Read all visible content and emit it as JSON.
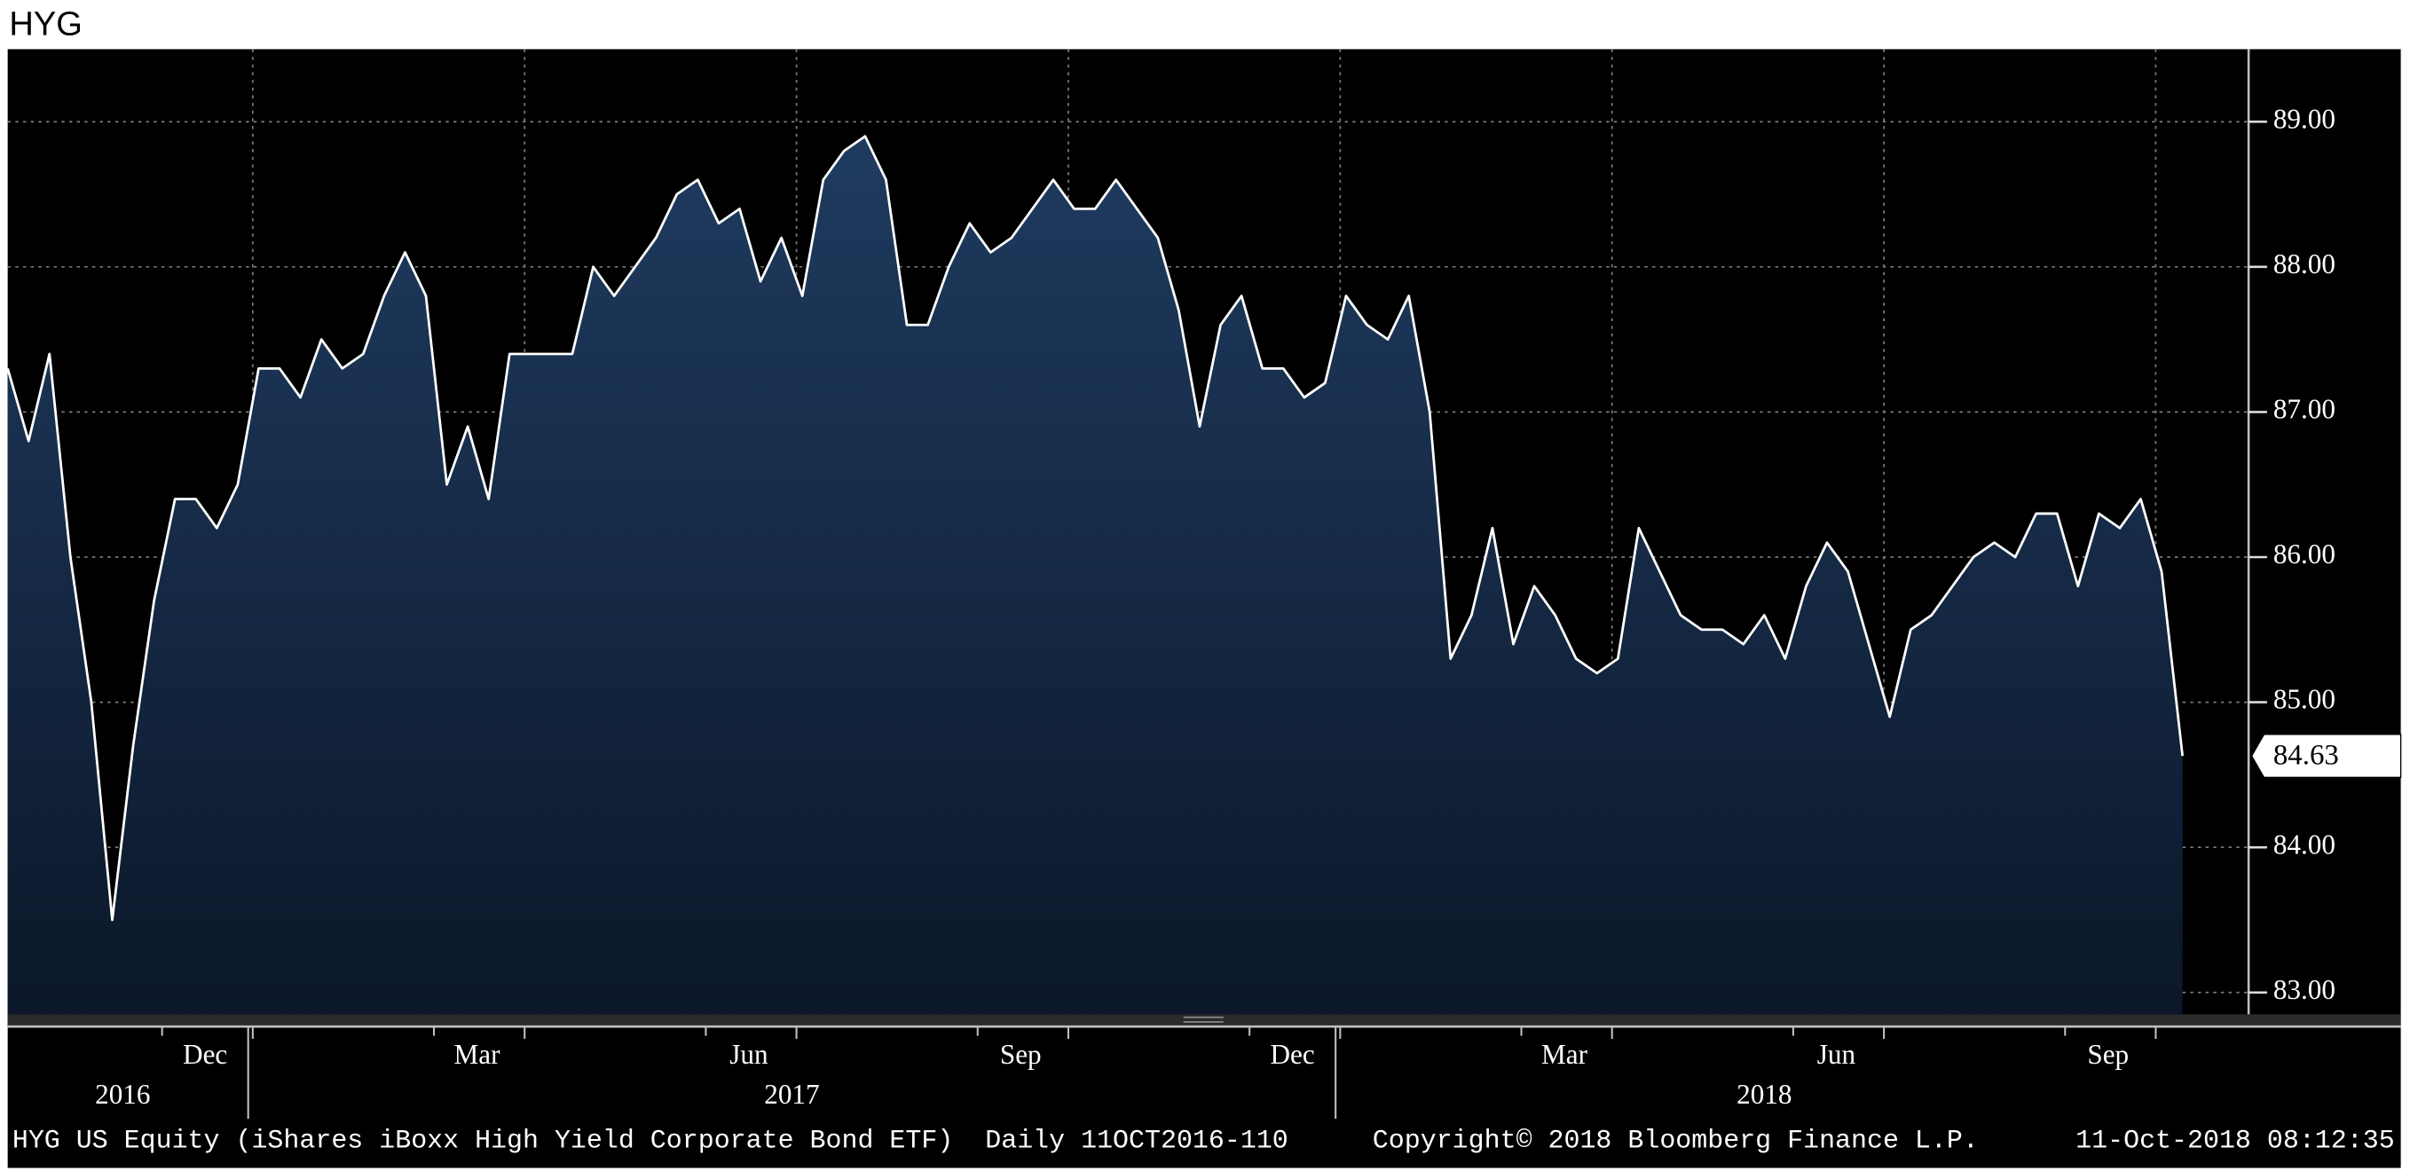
{
  "chart_data": {
    "type": "area",
    "title": "HYG",
    "color": "#ffffff",
    "fill_top": "#1f3b60",
    "fill_bottom": "#0b1729",
    "categories": [
      null,
      null,
      null,
      null,
      null,
      null,
      null,
      null,
      null,
      "Dec",
      null,
      null,
      null,
      null,
      null,
      null,
      null,
      null,
      null,
      null,
      null,
      null,
      "Mar",
      null,
      null,
      null,
      null,
      null,
      null,
      null,
      null,
      null,
      null,
      null,
      null,
      "Jun",
      null,
      null,
      null,
      null,
      null,
      null,
      null,
      null,
      null,
      null,
      null,
      null,
      "Sep",
      null,
      null,
      null,
      null,
      null,
      null,
      null,
      null,
      null,
      null,
      null,
      null,
      "Dec",
      null,
      null,
      null,
      null,
      null,
      null,
      null,
      null,
      null,
      null,
      null,
      null,
      "Mar",
      null,
      null,
      null,
      null,
      null,
      null,
      null,
      null,
      null,
      null,
      null,
      null,
      "Jun",
      null,
      null,
      null,
      null,
      null,
      null,
      null,
      null,
      null,
      null,
      null,
      null,
      "Sep",
      null,
      null,
      null,
      null
    ],
    "x_groups": [
      {
        "label": "2016",
        "from": 0,
        "to": 11
      },
      {
        "label": "2017",
        "from": 12,
        "to": 63
      },
      {
        "label": "2018",
        "from": 64,
        "to": 104
      }
    ],
    "values": [
      87.3,
      86.8,
      87.4,
      86.0,
      85.0,
      83.5,
      84.7,
      85.7,
      86.4,
      86.4,
      86.2,
      86.5,
      87.3,
      87.3,
      87.1,
      87.5,
      87.3,
      87.4,
      87.8,
      88.1,
      87.8,
      86.5,
      86.9,
      86.4,
      87.4,
      87.4,
      87.4,
      87.4,
      88.0,
      87.8,
      88.0,
      88.2,
      88.5,
      88.6,
      88.3,
      88.4,
      87.9,
      88.2,
      87.8,
      88.6,
      88.8,
      88.9,
      88.6,
      87.6,
      87.6,
      88.0,
      88.3,
      88.1,
      88.2,
      88.4,
      88.6,
      88.4,
      88.4,
      88.6,
      88.4,
      88.2,
      87.7,
      86.9,
      87.6,
      87.8,
      87.3,
      87.3,
      87.1,
      87.2,
      87.8,
      87.6,
      87.5,
      87.8,
      87.0,
      85.3,
      85.6,
      86.2,
      85.4,
      85.8,
      85.6,
      85.3,
      85.2,
      85.3,
      86.2,
      85.9,
      85.6,
      85.5,
      85.5,
      85.4,
      85.6,
      85.3,
      85.8,
      86.1,
      85.9,
      85.4,
      84.9,
      85.5,
      85.6,
      85.8,
      86.0,
      86.1,
      86.0,
      86.3,
      86.3,
      85.8,
      86.3,
      86.2,
      86.4,
      85.9,
      84.63
    ],
    "ylim": [
      82.85,
      89.5
    ],
    "yticks": [
      {
        "value": 83,
        "label": "83.00"
      },
      {
        "value": 84,
        "label": "84.00"
      },
      {
        "value": 85,
        "label": "85.00"
      },
      {
        "value": 86,
        "label": "86.00"
      },
      {
        "value": 87,
        "label": "87.00"
      },
      {
        "value": 88,
        "label": "88.00"
      },
      {
        "value": 89,
        "label": "89.00"
      }
    ],
    "grid": true,
    "footer_left": "HYG US Equity (iShares iBoxx High Yield Corporate Bond ETF)  Daily 11OCT2016-110",
    "footer_center": "Copyright© 2018 Bloomberg Finance L.P.",
    "footer_right": "11-Oct-2018 08:12:35"
  }
}
